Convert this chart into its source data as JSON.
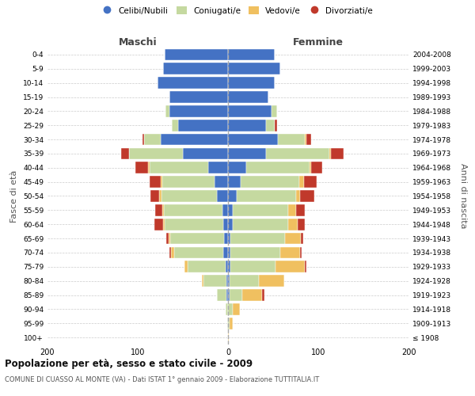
{
  "age_groups": [
    "100+",
    "95-99",
    "90-94",
    "85-89",
    "80-84",
    "75-79",
    "70-74",
    "65-69",
    "60-64",
    "55-59",
    "50-54",
    "45-49",
    "40-44",
    "35-39",
    "30-34",
    "25-29",
    "20-24",
    "15-19",
    "10-14",
    "5-9",
    "0-4"
  ],
  "birth_years": [
    "≤ 1908",
    "1909-1913",
    "1914-1918",
    "1919-1923",
    "1924-1928",
    "1929-1933",
    "1934-1938",
    "1939-1943",
    "1944-1948",
    "1949-1953",
    "1954-1958",
    "1959-1963",
    "1964-1968",
    "1969-1973",
    "1974-1978",
    "1979-1983",
    "1984-1988",
    "1989-1993",
    "1994-1998",
    "1999-2003",
    "2004-2008"
  ],
  "males": {
    "celibe": [
      0,
      0,
      0,
      2,
      2,
      3,
      5,
      4,
      5,
      6,
      12,
      15,
      22,
      50,
      75,
      55,
      65,
      65,
      78,
      72,
      70
    ],
    "coniugato": [
      0,
      1,
      3,
      10,
      25,
      42,
      55,
      60,
      65,
      65,
      62,
      58,
      65,
      60,
      18,
      7,
      4,
      0,
      0,
      0,
      0
    ],
    "vedovo": [
      0,
      0,
      0,
      0,
      2,
      3,
      3,
      2,
      2,
      2,
      2,
      2,
      2,
      0,
      0,
      0,
      0,
      0,
      0,
      0,
      0
    ],
    "divorziato": [
      0,
      0,
      0,
      0,
      0,
      0,
      2,
      2,
      10,
      8,
      10,
      12,
      14,
      8,
      2,
      0,
      0,
      0,
      0,
      0,
      0
    ]
  },
  "females": {
    "nubile": [
      0,
      0,
      0,
      2,
      2,
      3,
      3,
      3,
      5,
      5,
      10,
      14,
      20,
      42,
      55,
      42,
      48,
      45,
      52,
      58,
      52
    ],
    "coniugata": [
      0,
      2,
      5,
      14,
      32,
      50,
      55,
      60,
      62,
      62,
      65,
      65,
      70,
      70,
      30,
      10,
      6,
      0,
      0,
      0,
      0
    ],
    "vedova": [
      1,
      3,
      8,
      22,
      28,
      32,
      22,
      18,
      10,
      8,
      5,
      5,
      2,
      2,
      2,
      0,
      0,
      0,
      0,
      0,
      0
    ],
    "divorziata": [
      0,
      0,
      0,
      2,
      0,
      2,
      2,
      2,
      8,
      10,
      16,
      14,
      12,
      14,
      5,
      2,
      0,
      0,
      0,
      0,
      0
    ]
  },
  "colors": {
    "celibe": "#4472C4",
    "coniugato": "#c5d9a0",
    "vedovo": "#f0c060",
    "divorziato": "#c0392b"
  },
  "xlim": 200,
  "title": "Popolazione per età, sesso e stato civile - 2009",
  "subtitle": "COMUNE DI CUASSO AL MONTE (VA) - Dati ISTAT 1° gennaio 2009 - Elaborazione TUTTITALIA.IT",
  "ylabel_left": "Fasce di età",
  "ylabel_right": "Anni di nascita",
  "xlabel_maschi": "Maschi",
  "xlabel_femmine": "Femmine",
  "legend_labels": [
    "Celibi/Nubili",
    "Coniugati/e",
    "Vedovi/e",
    "Divorziati/e"
  ],
  "background_color": "#ffffff",
  "grid_color": "#cccccc"
}
